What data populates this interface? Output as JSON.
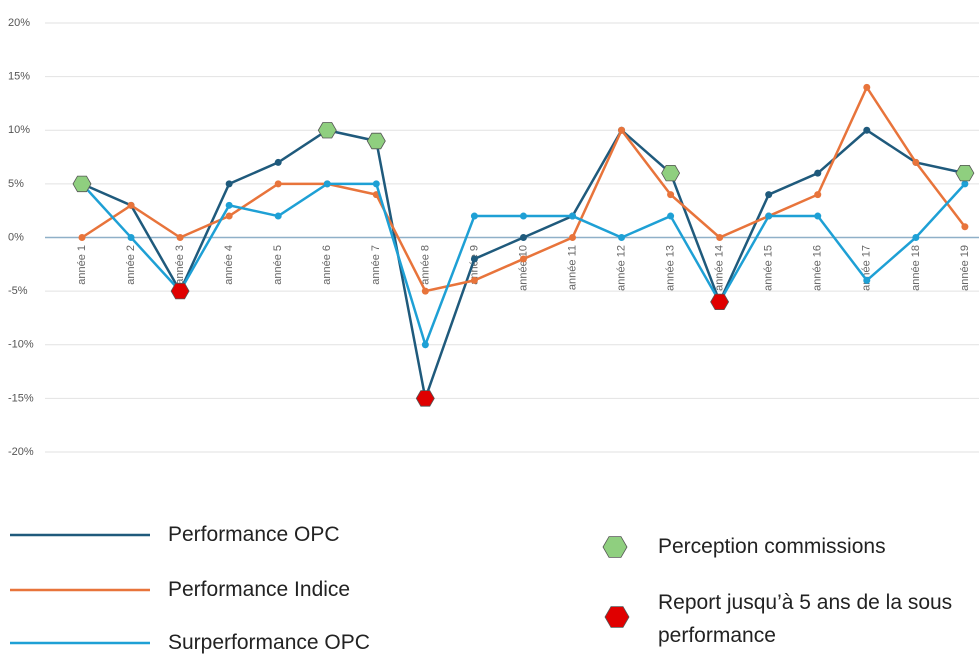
{
  "chart_data": {
    "type": "line",
    "categories": [
      "année 1",
      "année 2",
      "année 3",
      "année 4",
      "année 5",
      "année 6",
      "année 7",
      "année 8",
      "année 9",
      "année 10",
      "année 11",
      "année 12",
      "année 13",
      "année 14",
      "année 15",
      "année 16",
      "année 17",
      "année 18",
      "année 19"
    ],
    "series": [
      {
        "name": "Performance OPC",
        "color": "#1f5a7c",
        "values": [
          5,
          3,
          -5,
          5,
          7,
          10,
          9,
          -15,
          -2,
          0,
          2,
          10,
          6,
          -6,
          4,
          6,
          10,
          7,
          6
        ]
      },
      {
        "name": "Performance Indice",
        "color": "#e8743b",
        "values": [
          0,
          3,
          0,
          2,
          5,
          5,
          4,
          -5,
          -4,
          -2,
          0,
          10,
          4,
          0,
          2,
          4,
          14,
          7,
          1
        ]
      },
      {
        "name": "Surperformance OPC",
        "color": "#1ea0d5",
        "values": [
          5,
          0,
          -5,
          3,
          2,
          5,
          5,
          -10,
          2,
          2,
          2,
          0,
          2,
          -6,
          2,
          2,
          -4,
          0,
          5
        ]
      },
      {
        "name": "Perception commissions",
        "color": "#8fcf7f",
        "style": "markers",
        "values": [
          5,
          null,
          null,
          null,
          null,
          10,
          9,
          null,
          null,
          null,
          null,
          null,
          6,
          null,
          null,
          null,
          null,
          null,
          6
        ]
      },
      {
        "name": "Report jusqu’à 5 ans de la sous performance",
        "color": "#e00000",
        "style": "markers",
        "values": [
          null,
          null,
          -5,
          null,
          null,
          null,
          null,
          -15,
          null,
          null,
          null,
          null,
          null,
          -6,
          null,
          null,
          null,
          null,
          null
        ]
      }
    ],
    "ylim": [
      -20,
      20
    ],
    "yticks": [
      {
        "value": -20,
        "label": "-20%"
      },
      {
        "value": -15,
        "label": "-15%"
      },
      {
        "value": -10,
        "label": "-10%"
      },
      {
        "value": -5,
        "label": "-5%"
      },
      {
        "value": 0,
        "label": "0%"
      },
      {
        "value": 5,
        "label": "5%"
      },
      {
        "value": 10,
        "label": "10%"
      },
      {
        "value": 15,
        "label": "15%"
      },
      {
        "value": 20,
        "label": "20%"
      }
    ],
    "grid": true
  }
}
